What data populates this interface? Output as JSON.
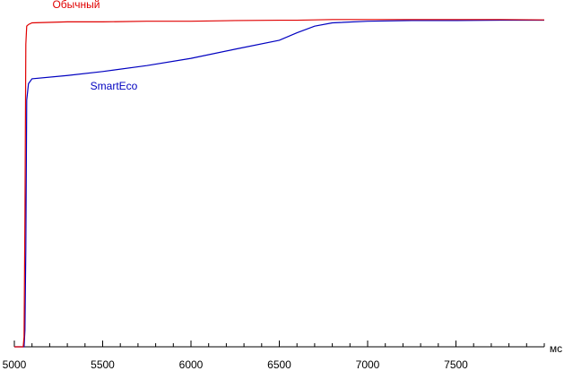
{
  "chart_data": {
    "type": "line",
    "x_label": "мс",
    "x": [
      5000,
      5040,
      5050,
      5055,
      5060,
      5065,
      5070,
      5080,
      5100,
      5300,
      5500,
      5750,
      6000,
      6250,
      6500,
      6600,
      6700,
      6800,
      7000,
      7250,
      7500,
      7750,
      8000
    ],
    "series": [
      {
        "name": "Обычный",
        "color": "#e00000",
        "values": [
          0,
          0,
          0,
          3,
          40,
          92,
          97.5,
          98,
          98.5,
          98.8,
          98.8,
          99,
          99,
          99.2,
          99.3,
          99.3,
          99.4,
          99.5,
          99.5,
          99.5,
          99.5,
          99.5,
          99.4
        ]
      },
      {
        "name": "SmartEco",
        "color": "#0000c0",
        "values": [
          0,
          0,
          0,
          0,
          5,
          30,
          75,
          80,
          81.5,
          82.5,
          83.7,
          85.5,
          87.7,
          90.5,
          93.2,
          95.5,
          97.5,
          98.5,
          99,
          99.2,
          99.2,
          99.3,
          99.3
        ]
      }
    ],
    "xlim": [
      5000,
      8000
    ],
    "xticks": [
      5000,
      5500,
      6000,
      6500,
      7000,
      7500
    ],
    "xminorticks": [
      5000,
      5100,
      5200,
      5300,
      5400,
      5500,
      5600,
      5700,
      5800,
      5900,
      6000,
      6100,
      6200,
      6300,
      6400,
      6500,
      6600,
      6700,
      6800,
      6900,
      7000,
      7100,
      7200,
      7300,
      7400,
      7500,
      7600,
      7700,
      7800,
      7900,
      8000
    ],
    "ylim": [
      0,
      100
    ]
  }
}
